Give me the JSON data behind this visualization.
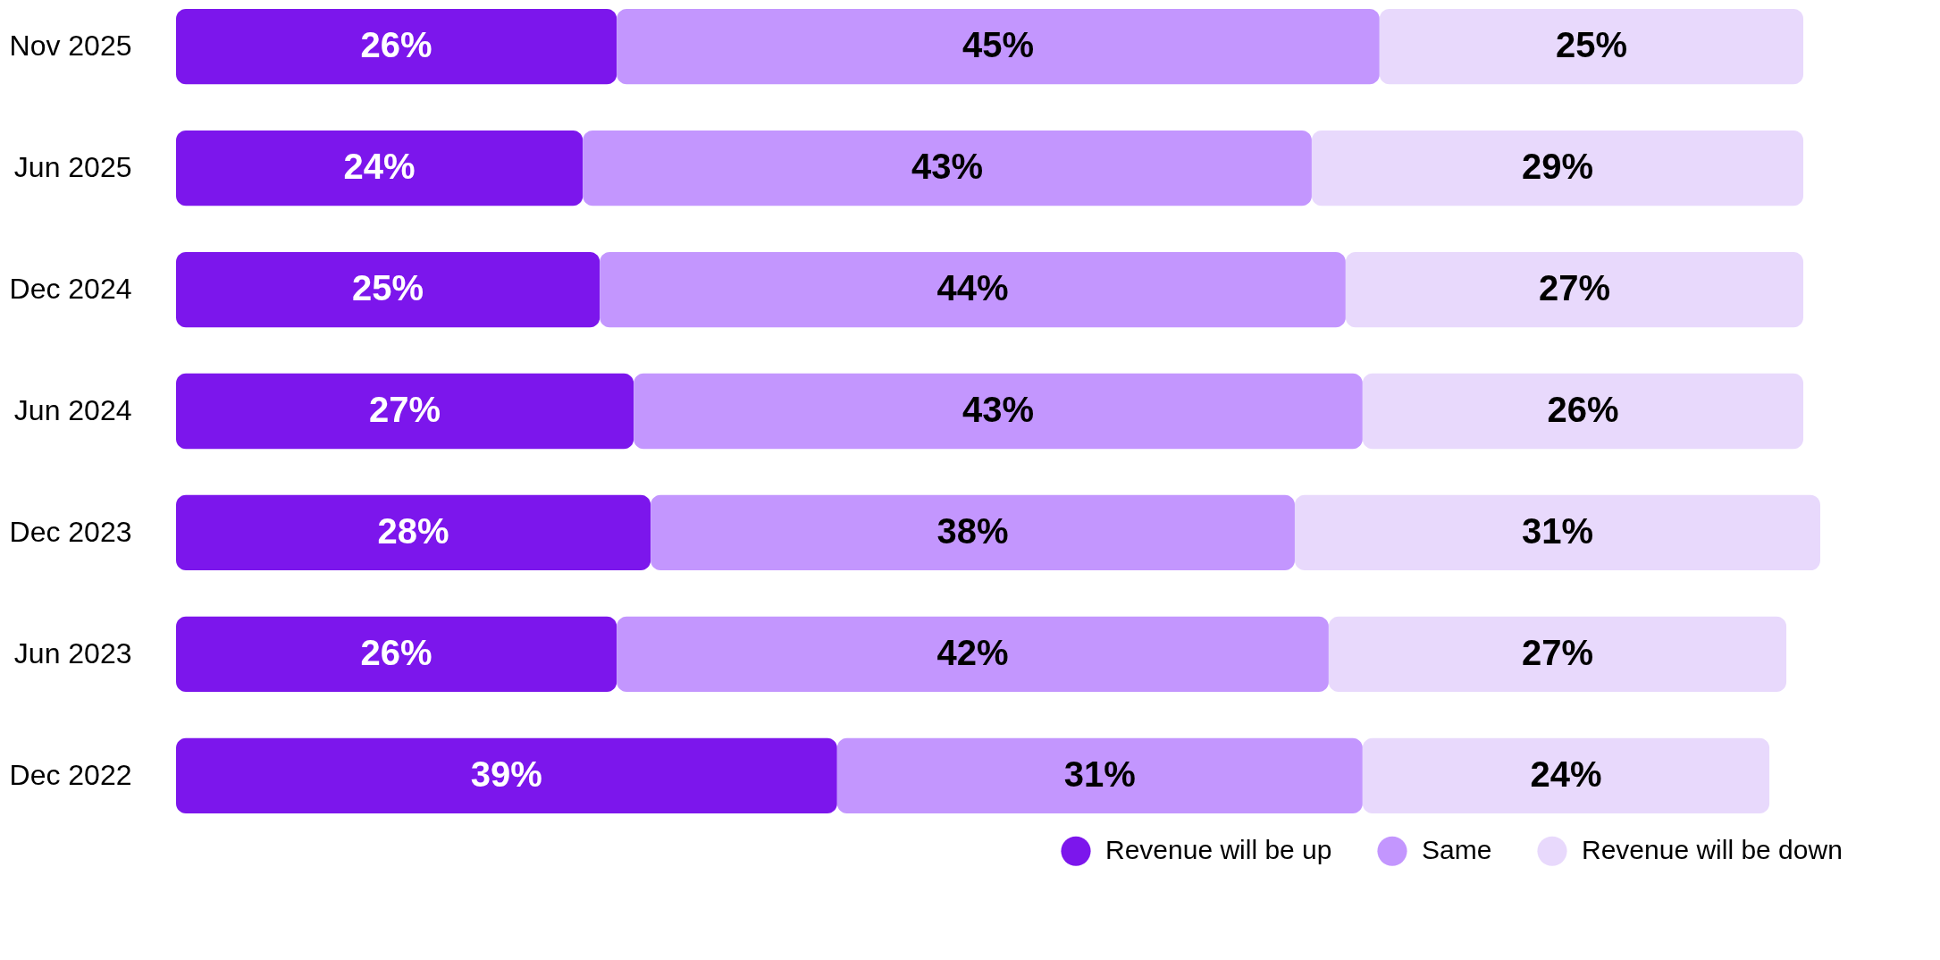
{
  "chart_data": {
    "type": "bar",
    "orientation": "horizontal",
    "stacked": true,
    "categories": [
      "Nov 2025",
      "Jun 2025",
      "Dec 2024",
      "Jun 2024",
      "Dec 2023",
      "Jun 2023",
      "Dec 2022"
    ],
    "xlim": [
      0,
      97
    ],
    "tick_labels": "y",
    "legend": "bottom right",
    "series": [
      {
        "name": "Revenue will be up",
        "color": "#7c16ec",
        "values": [
          26,
          24,
          25,
          27,
          28,
          26,
          39
        ],
        "value_labels": [
          "26%",
          "24%",
          "25%",
          "27%",
          "28%",
          "26%",
          "39%"
        ]
      },
      {
        "name": "Same",
        "color": "#c396fe",
        "values": [
          45,
          43,
          44,
          43,
          38,
          42,
          31
        ],
        "value_labels": [
          "45%",
          "43%",
          "44%",
          "43%",
          "38%",
          "42%",
          "31%"
        ]
      },
      {
        "name": "Revenue will be down",
        "color": "#e8d9fc",
        "values": [
          25,
          29,
          27,
          26,
          31,
          27,
          24
        ],
        "value_labels": [
          "25%",
          "29%",
          "27%",
          "26%",
          "31%",
          "27%",
          "24%"
        ]
      }
    ]
  }
}
